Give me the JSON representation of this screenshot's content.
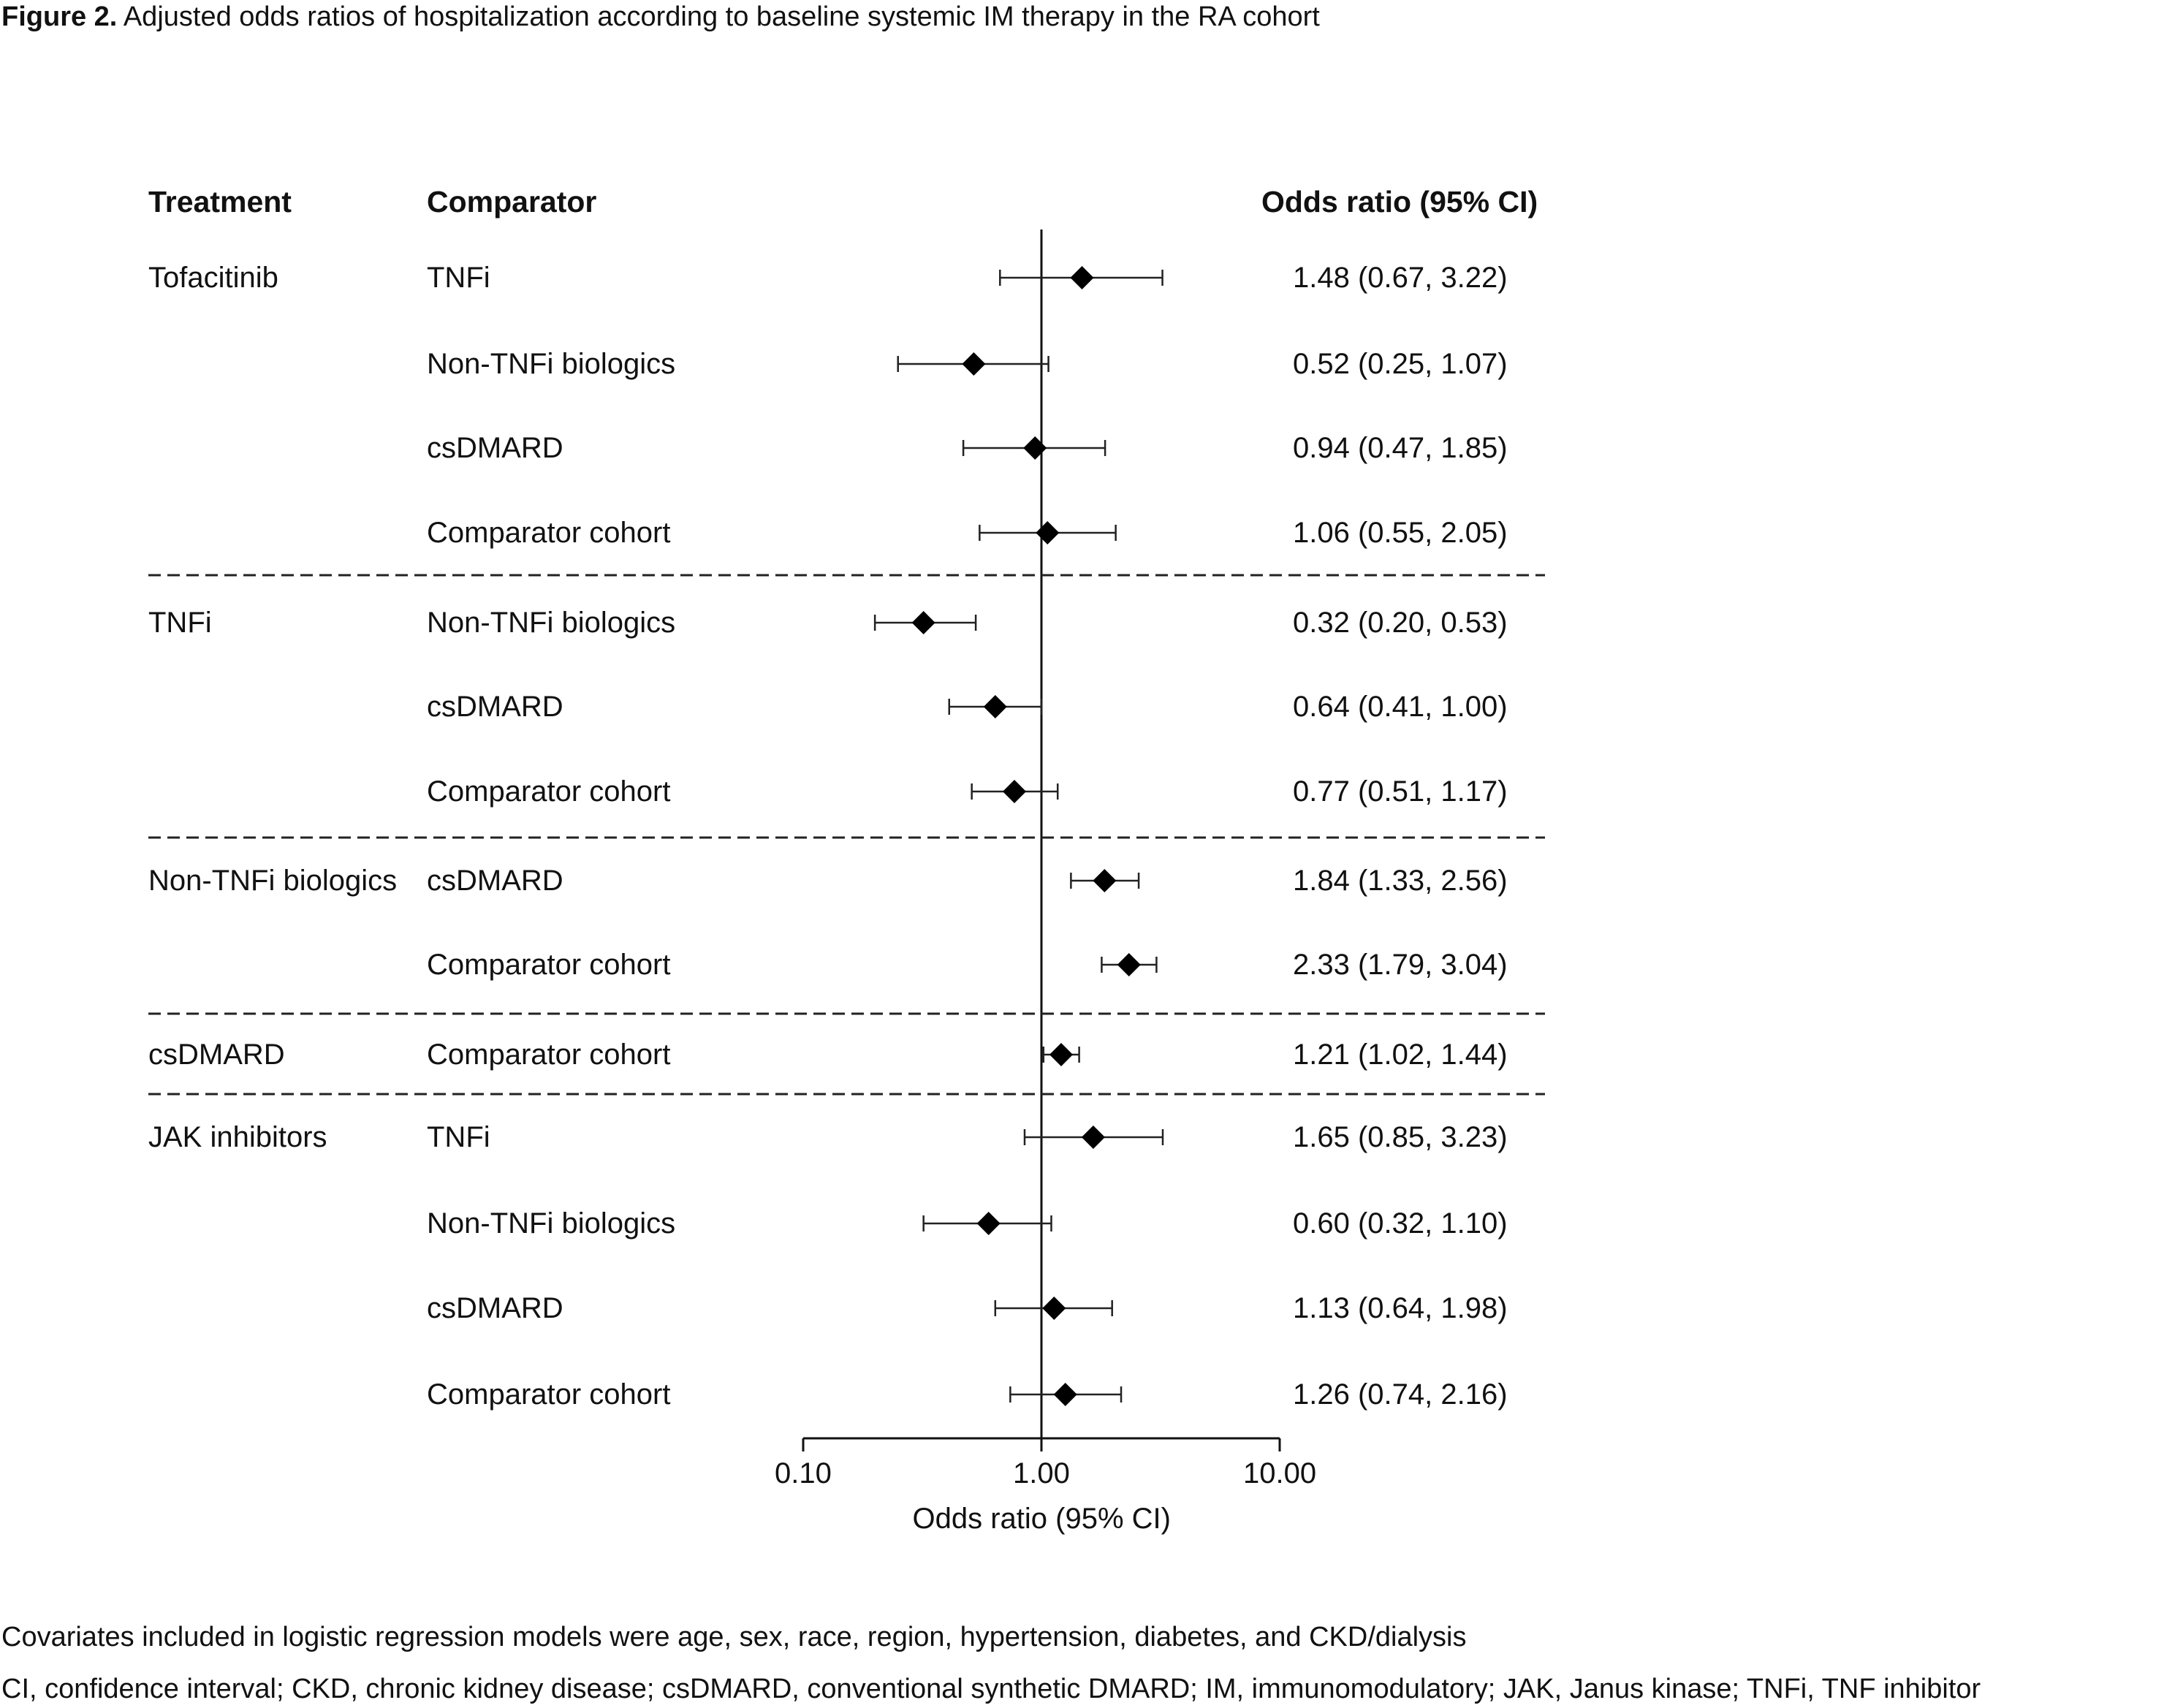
{
  "figure": {
    "title_bold": "Figure 2.",
    "title_rest": " Adjusted odds ratios of hospitalization according to baseline systemic IM therapy in the RA cohort"
  },
  "headers": {
    "treatment": "Treatment",
    "comparator": "Comparator",
    "or": "Odds ratio (95% CI)"
  },
  "footnotes": {
    "covariates": "Covariates included in logistic regression models were age, sex, race, region, hypertension, diabetes, and CKD/dialysis",
    "abbreviations": "CI, confidence interval; CKD, chronic kidney disease; csDMARD, conventional synthetic DMARD; IM, immunomodulatory; JAK, Janus kinase; TNFi, TNF inhibitor"
  },
  "chart_data": {
    "type": "forest",
    "x_scale": "log",
    "xlim": [
      0.1,
      10
    ],
    "reference_line": 1.0,
    "xticks": [
      "0.10",
      "1.00",
      "10.00"
    ],
    "xlabel": "Odds ratio (95% CI)",
    "rows": [
      {
        "treatment": "Tofacitinib",
        "comparator": "TNFi",
        "or": 1.48,
        "lo": 0.67,
        "hi": 3.22,
        "label": "1.48 (0.67, 3.22)"
      },
      {
        "treatment": "",
        "comparator": "Non-TNFi biologics",
        "or": 0.52,
        "lo": 0.25,
        "hi": 1.07,
        "label": "0.52 (0.25, 1.07)"
      },
      {
        "treatment": "",
        "comparator": "csDMARD",
        "or": 0.94,
        "lo": 0.47,
        "hi": 1.85,
        "label": "0.94 (0.47, 1.85)"
      },
      {
        "treatment": "",
        "comparator": "Comparator cohort",
        "or": 1.06,
        "lo": 0.55,
        "hi": 2.05,
        "label": "1.06 (0.55, 2.05)"
      },
      {
        "treatment": "TNFi",
        "comparator": "Non-TNFi biologics",
        "or": 0.32,
        "lo": 0.2,
        "hi": 0.53,
        "label": "0.32 (0.20, 0.53)"
      },
      {
        "treatment": "",
        "comparator": "csDMARD",
        "or": 0.64,
        "lo": 0.41,
        "hi": 1.0,
        "label": "0.64 (0.41, 1.00)"
      },
      {
        "treatment": "",
        "comparator": "Comparator cohort",
        "or": 0.77,
        "lo": 0.51,
        "hi": 1.17,
        "label": "0.77 (0.51, 1.17)"
      },
      {
        "treatment": "Non-TNFi biologics",
        "comparator": "csDMARD",
        "or": 1.84,
        "lo": 1.33,
        "hi": 2.56,
        "label": "1.84 (1.33, 2.56)"
      },
      {
        "treatment": "",
        "comparator": "Comparator cohort",
        "or": 2.33,
        "lo": 1.79,
        "hi": 3.04,
        "label": "2.33 (1.79, 3.04)"
      },
      {
        "treatment": "csDMARD",
        "comparator": "Comparator cohort",
        "or": 1.21,
        "lo": 1.02,
        "hi": 1.44,
        "label": "1.21 (1.02, 1.44)"
      },
      {
        "treatment": "JAK inhibitors",
        "comparator": "TNFi",
        "or": 1.65,
        "lo": 0.85,
        "hi": 3.23,
        "label": "1.65 (0.85, 3.23)"
      },
      {
        "treatment": "",
        "comparator": "Non-TNFi biologics",
        "or": 0.6,
        "lo": 0.32,
        "hi": 1.1,
        "label": "0.60 (0.32, 1.10)"
      },
      {
        "treatment": "",
        "comparator": "csDMARD",
        "or": 1.13,
        "lo": 0.64,
        "hi": 1.98,
        "label": "1.13 (0.64, 1.98)"
      },
      {
        "treatment": "",
        "comparator": "Comparator cohort",
        "or": 1.26,
        "lo": 0.74,
        "hi": 2.16,
        "label": "1.26 (0.74, 2.16)"
      }
    ],
    "dividers_after_row": [
      3,
      6,
      8,
      9
    ]
  }
}
